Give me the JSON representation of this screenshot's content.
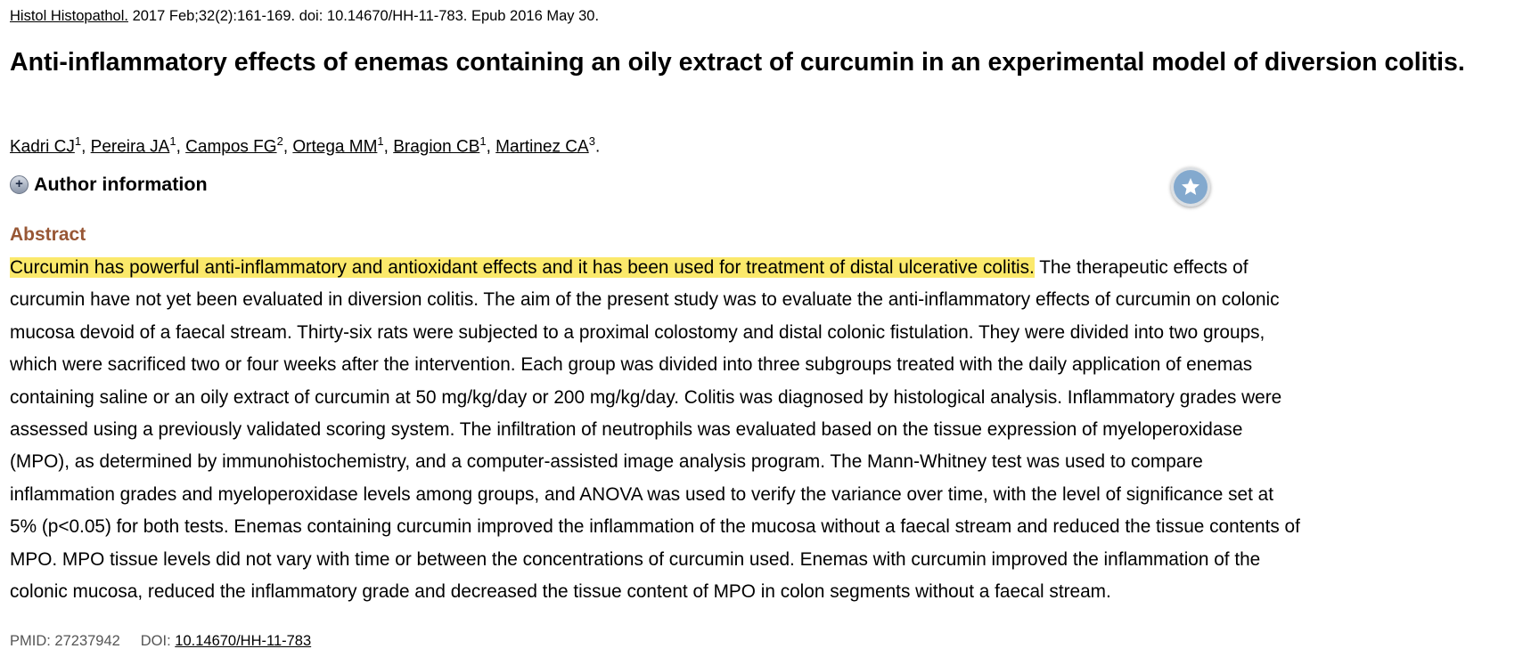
{
  "citation": {
    "journal": "Histol Histopathol.",
    "details": " 2017 Feb;32(2):161-169. doi: 10.14670/HH-11-783. Epub 2016 May 30."
  },
  "title": "Anti-inflammatory effects of enemas containing an oily extract of curcumin in an experimental model of diversion colitis.",
  "authors": [
    {
      "name": "Kadri CJ",
      "aff": "1"
    },
    {
      "name": "Pereira JA",
      "aff": "1"
    },
    {
      "name": "Campos FG",
      "aff": "2"
    },
    {
      "name": "Ortega MM",
      "aff": "1"
    },
    {
      "name": "Bragion CB",
      "aff": "1"
    },
    {
      "name": "Martinez CA",
      "aff": "3"
    }
  ],
  "author_info_label": "Author information",
  "abstract": {
    "heading": "Abstract",
    "highlighted": "Curcumin has powerful anti-inflammatory and antioxidant effects and it has been used for treatment of distal ulcerative colitis.",
    "lines": [
      " The therapeutic effects of",
      "curcumin have not yet been evaluated in diversion colitis. The aim of the present study was to evaluate the anti-inflammatory effects of curcumin on colonic",
      "mucosa devoid of a faecal stream. Thirty-six rats were subjected to a proximal colostomy and distal colonic fistulation. They were divided into two groups,",
      "which were sacrificed two or four weeks after the intervention. Each group was divided into three subgroups treated with the daily application of enemas",
      "containing saline or an oily extract of curcumin at 50 mg/kg/day or 200 mg/kg/day. Colitis was diagnosed by histological analysis. Inflammatory grades were",
      "assessed using a previously validated scoring system. The infiltration of neutrophils was evaluated based on the tissue expression of myeloperoxidase",
      "(MPO), as determined by immunohistochemistry, and a computer-assisted image analysis program. The Mann-Whitney test was used to compare",
      "inflammation grades and myeloperoxidase levels among groups, and ANOVA was used to verify the variance over time, with the level of significance set at",
      "5% (p<0.05) for both tests. Enemas containing curcumin improved the inflammation of the mucosa without a faecal stream and reduced the tissue contents of",
      "MPO. MPO tissue levels did not vary with time or between the concentrations of curcumin used. Enemas with curcumin improved the inflammation of the",
      "colonic mucosa, reduced the inflammatory grade and decreased the tissue content of MPO in colon segments without a faecal stream."
    ]
  },
  "footer": {
    "pmid_label": "PMID: 27237942",
    "doi_label": "DOI: ",
    "doi": "10.14670/HH-11-783"
  },
  "colors": {
    "abstract_heading": "#985735",
    "highlight": "#fbe96b"
  },
  "icons": {
    "expand": "plus-circle-icon",
    "floating": "star-icon"
  }
}
